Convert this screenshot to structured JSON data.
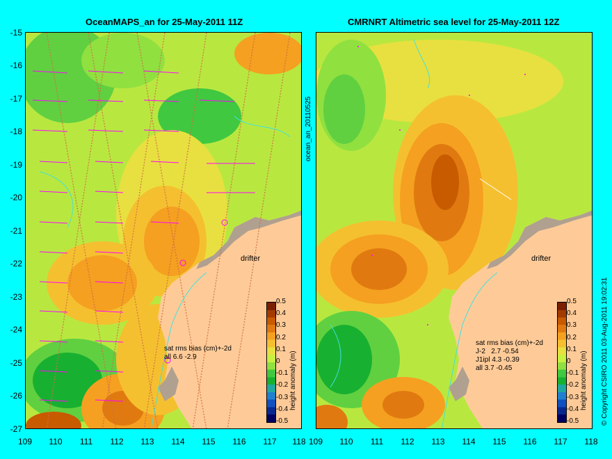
{
  "left_map": {
    "title": "OceanMAPS_an for 25-May-2011 11Z",
    "stats": [
      "sat rms bias (cm)+-2d",
      "all 6.6 -2.9"
    ]
  },
  "right_map": {
    "title": "CMRNRT Altimetric sea level  for 25-May-2011 12Z",
    "stats": [
      "sat rms bias (cm)+-2d",
      "J-2   2.7 -0.54",
      "J1ipl 4.3 -0.39",
      "all 3.7 -0.45"
    ]
  },
  "y_ticks": [
    "-15",
    "-16",
    "-17",
    "-18",
    "-19",
    "-20",
    "-21",
    "-22",
    "-23",
    "-24",
    "-25",
    "-26",
    "-27"
  ],
  "x_ticks": [
    "109",
    "110",
    "111",
    "112",
    "113",
    "114",
    "115",
    "116",
    "117",
    "118"
  ],
  "colorbar": {
    "label": "height anomaly (m)",
    "ticks": [
      "0.5",
      "0.4",
      "0.3",
      "0.2",
      "0.1",
      "0",
      "-0.1",
      "-0.2",
      "-0.3",
      "-0.4",
      "-0.5"
    ],
    "colors": [
      "#7a2000",
      "#a33a00",
      "#c85a00",
      "#e07a10",
      "#f5a020",
      "#f5c030",
      "#e8e040",
      "#c8f040",
      "#90e040",
      "#40c840",
      "#18b030",
      "#20a8a0",
      "#2080d0",
      "#1050c0",
      "#082890",
      "#000060"
    ]
  },
  "labels": {
    "drifter": "drifter",
    "vertical_id": "ocean_an_20110525",
    "copyright": "© Copyright CSIRO 2011   03-Aug-2011 19:02:31"
  }
}
